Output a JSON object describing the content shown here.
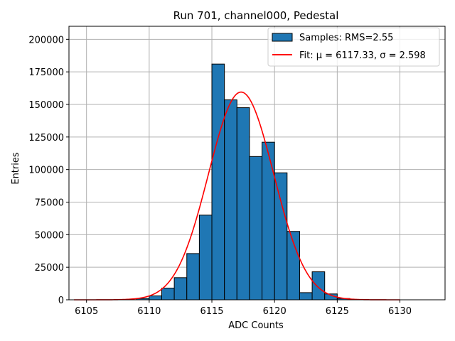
{
  "chart_data": {
    "type": "bar",
    "title": "Run 701, channel000, Pedestal",
    "xlabel": "ADC Counts",
    "ylabel": "Entries",
    "xlim": [
      6103.6,
      6133.6
    ],
    "ylim": [
      0,
      210000
    ],
    "xticks": [
      6105,
      6110,
      6115,
      6120,
      6125,
      6130
    ],
    "yticks": [
      0,
      25000,
      50000,
      75000,
      100000,
      125000,
      150000,
      175000,
      200000
    ],
    "grid": true,
    "legend_position": "top-right",
    "bin_width": 1,
    "bins": [
      {
        "left": 6109.0,
        "value": 1000
      },
      {
        "left": 6110.0,
        "value": 3000
      },
      {
        "left": 6111.0,
        "value": 9000
      },
      {
        "left": 6112.0,
        "value": 17000
      },
      {
        "left": 6113.0,
        "value": 35500
      },
      {
        "left": 6114.0,
        "value": 65000
      },
      {
        "left": 6115.0,
        "value": 181000
      },
      {
        "left": 6116.0,
        "value": 153500
      },
      {
        "left": 6117.0,
        "value": 147500
      },
      {
        "left": 6118.0,
        "value": 110000
      },
      {
        "left": 6119.0,
        "value": 121000
      },
      {
        "left": 6120.0,
        "value": 97500
      },
      {
        "left": 6121.0,
        "value": 52500
      },
      {
        "left": 6122.0,
        "value": 5500
      },
      {
        "left": 6123.0,
        "value": 21500
      },
      {
        "left": 6124.0,
        "value": 4500
      },
      {
        "left": 6125.0,
        "value": 1000
      }
    ],
    "fit": {
      "mu": 6117.33,
      "sigma": 2.598,
      "amplitude": 159500,
      "x_range": [
        6104,
        6130
      ]
    },
    "series": [
      {
        "name": "Samples: RMS=2.55",
        "color": "#1f77b4",
        "edge_color": "#000000"
      },
      {
        "name": "Fit: μ = 6117.33, σ = 2.598",
        "color": "#ff0000"
      }
    ]
  }
}
